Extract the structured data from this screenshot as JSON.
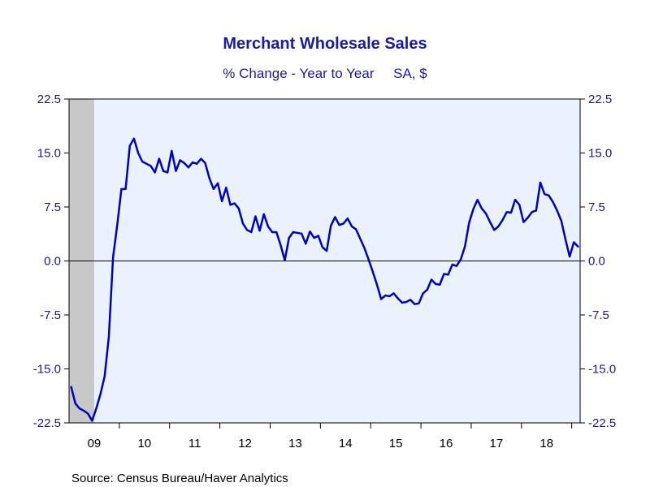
{
  "chart_data": {
    "type": "line",
    "title": "Merchant Wholesale Sales",
    "subtitle": "% Change - Year to Year     SA, $",
    "source": "Source:  Census Bureau/Haver Analytics",
    "xlabel": "",
    "ylabel": "",
    "ylim": [
      -22.5,
      22.5
    ],
    "y_ticks": [
      "22.5",
      "15.0",
      "7.5",
      "0.0",
      "-7.5",
      "-15.0",
      "-22.5"
    ],
    "y_tick_values": [
      22.5,
      15.0,
      7.5,
      0.0,
      -7.5,
      -15.0,
      -22.5
    ],
    "x_tick_labels": [
      "09",
      "10",
      "11",
      "12",
      "13",
      "14",
      "15",
      "16",
      "17",
      "18"
    ],
    "x_start_year": 2009,
    "grid": false,
    "zero_line": true,
    "recession_shading": {
      "start": "2009-01",
      "end": "2009-06"
    },
    "colors": {
      "line": "#0000c0",
      "plot_background": "#eaf2fe",
      "recession": "#c8c8c8",
      "title": "#1a1aa6"
    },
    "series": [
      {
        "name": "",
        "start": "2009-01",
        "frequency": "monthly",
        "values": [
          -17.5,
          -19.8,
          -20.5,
          -20.8,
          -21.2,
          -22.2,
          -20.5,
          -18.5,
          -16.0,
          -10.5,
          0.5,
          5.0,
          10.0,
          10.0,
          16.0,
          17.0,
          15.0,
          13.8,
          13.5,
          13.2,
          12.3,
          14.2,
          12.5,
          12.3,
          15.3,
          12.5,
          14.0,
          13.6,
          13.0,
          13.7,
          13.5,
          14.2,
          13.6,
          11.5,
          10.0,
          10.8,
          8.3,
          10.2,
          7.8,
          8.0,
          7.3,
          5.2,
          4.3,
          4.0,
          6.2,
          4.2,
          6.5,
          4.8,
          4.0,
          4.0,
          2.2,
          0.1,
          3.2,
          4.0,
          3.9,
          3.8,
          2.4,
          4.1,
          3.2,
          3.5,
          1.9,
          1.4,
          4.9,
          6.1,
          5.0,
          5.2,
          5.9,
          4.8,
          4.4,
          3.1,
          1.8,
          0.2,
          -1.5,
          -3.3,
          -5.3,
          -4.8,
          -4.9,
          -4.5,
          -5.2,
          -5.8,
          -5.7,
          -5.4,
          -6.0,
          -5.9,
          -4.5,
          -4.0,
          -2.6,
          -3.2,
          -3.3,
          -1.8,
          -1.9,
          -0.5,
          -0.7,
          0.2,
          2.0,
          5.3,
          7.2,
          8.5,
          7.3,
          6.6,
          5.4,
          4.3,
          4.8,
          5.7,
          6.8,
          6.7,
          8.5,
          7.8,
          5.4,
          6.0,
          6.8,
          7.0,
          10.9,
          9.3,
          9.1,
          8.2,
          7.0,
          5.6,
          3.0,
          0.6,
          2.6,
          2.0
        ]
      }
    ]
  }
}
